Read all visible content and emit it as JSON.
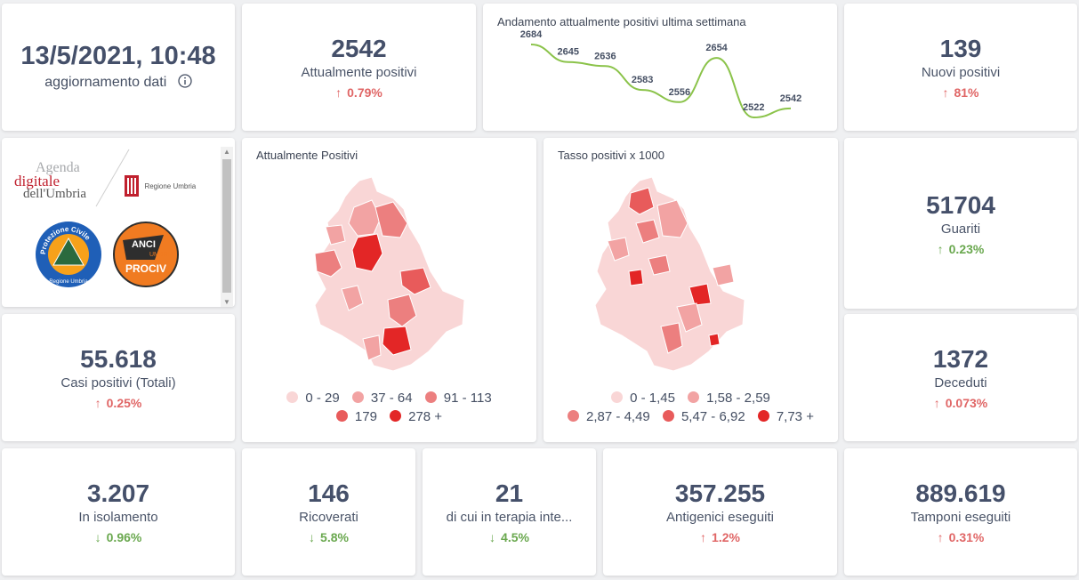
{
  "update": {
    "datetime": "13/5/2021, 10:48",
    "label": "aggiornamento dati",
    "info_icon": "info-circle-icon"
  },
  "kpis": {
    "attualmente_positivi": {
      "value": "2542",
      "label": "Attualmente positivi",
      "change": "0.79%",
      "direction": "up"
    },
    "nuovi_positivi": {
      "value": "139",
      "label": "Nuovi positivi",
      "change": "81%",
      "direction": "up"
    },
    "guariti": {
      "value": "51704",
      "label": "Guariti",
      "change": "0.23%",
      "direction": "up"
    },
    "casi_totali": {
      "value": "55.618",
      "label": "Casi positivi (Totali)",
      "change": "0.25%",
      "direction": "up"
    },
    "deceduti": {
      "value": "1372",
      "label": "Deceduti",
      "change": "0.073%",
      "direction": "up"
    },
    "isolamento": {
      "value": "3.207",
      "label": "In isolamento",
      "change": "0.96%",
      "direction": "down"
    },
    "ricoverati": {
      "value": "146",
      "label": "Ricoverati",
      "change": "5.8%",
      "direction": "down"
    },
    "terapia": {
      "value": "21",
      "label": "di cui in terapia inte...",
      "change": "4.5%",
      "direction": "down"
    },
    "antigenici": {
      "value": "357.255",
      "label": "Antigenici eseguiti",
      "change": "1.2%",
      "direction": "up"
    },
    "tamponi": {
      "value": "889.619",
      "label": "Tamponi eseguiti",
      "change": "0.31%",
      "direction": "up"
    }
  },
  "chart_data": {
    "type": "line",
    "title": "Andamento attualmente positivi ultima settimana",
    "values": [
      2684,
      2645,
      2636,
      2583,
      2556,
      2654,
      2522,
      2542
    ],
    "labels": [
      "2684",
      "2645",
      "2636",
      "2583",
      "2556",
      "2654",
      "2522",
      "2542"
    ],
    "line_color": "#8bc34a"
  },
  "logos": {
    "agenda_line1": "Agenda",
    "agenda_line2": "digitale",
    "agenda_line3": "dell'Umbria",
    "regione": "Regione Umbria",
    "protezione_ring": "Protezione Civile",
    "protezione_sub": "Regione Umbria",
    "anci_1": "ANCI",
    "anci_2": "UMBRIA",
    "anci_3": "PROCIV"
  },
  "map1": {
    "title": "Attualmente Positivi",
    "legend": [
      {
        "label": "0 - 29",
        "color": "#f9d6d6"
      },
      {
        "label": "37 - 64",
        "color": "#f2a3a3"
      },
      {
        "label": "91 - 113",
        "color": "#ec7f7f"
      },
      {
        "label": "179",
        "color": "#e85b5b"
      },
      {
        "label": "278 +",
        "color": "#e32626"
      }
    ]
  },
  "map2": {
    "title": "Tasso positivi x 1000",
    "legend": [
      {
        "label": "0 - 1,45",
        "color": "#f9d6d6"
      },
      {
        "label": "1,58 - 2,59",
        "color": "#f2a3a3"
      },
      {
        "label": "2,87 - 4,49",
        "color": "#ec7f7f"
      },
      {
        "label": "5,47 - 6,92",
        "color": "#e85b5b"
      },
      {
        "label": "7,73 +",
        "color": "#e32626"
      }
    ]
  }
}
